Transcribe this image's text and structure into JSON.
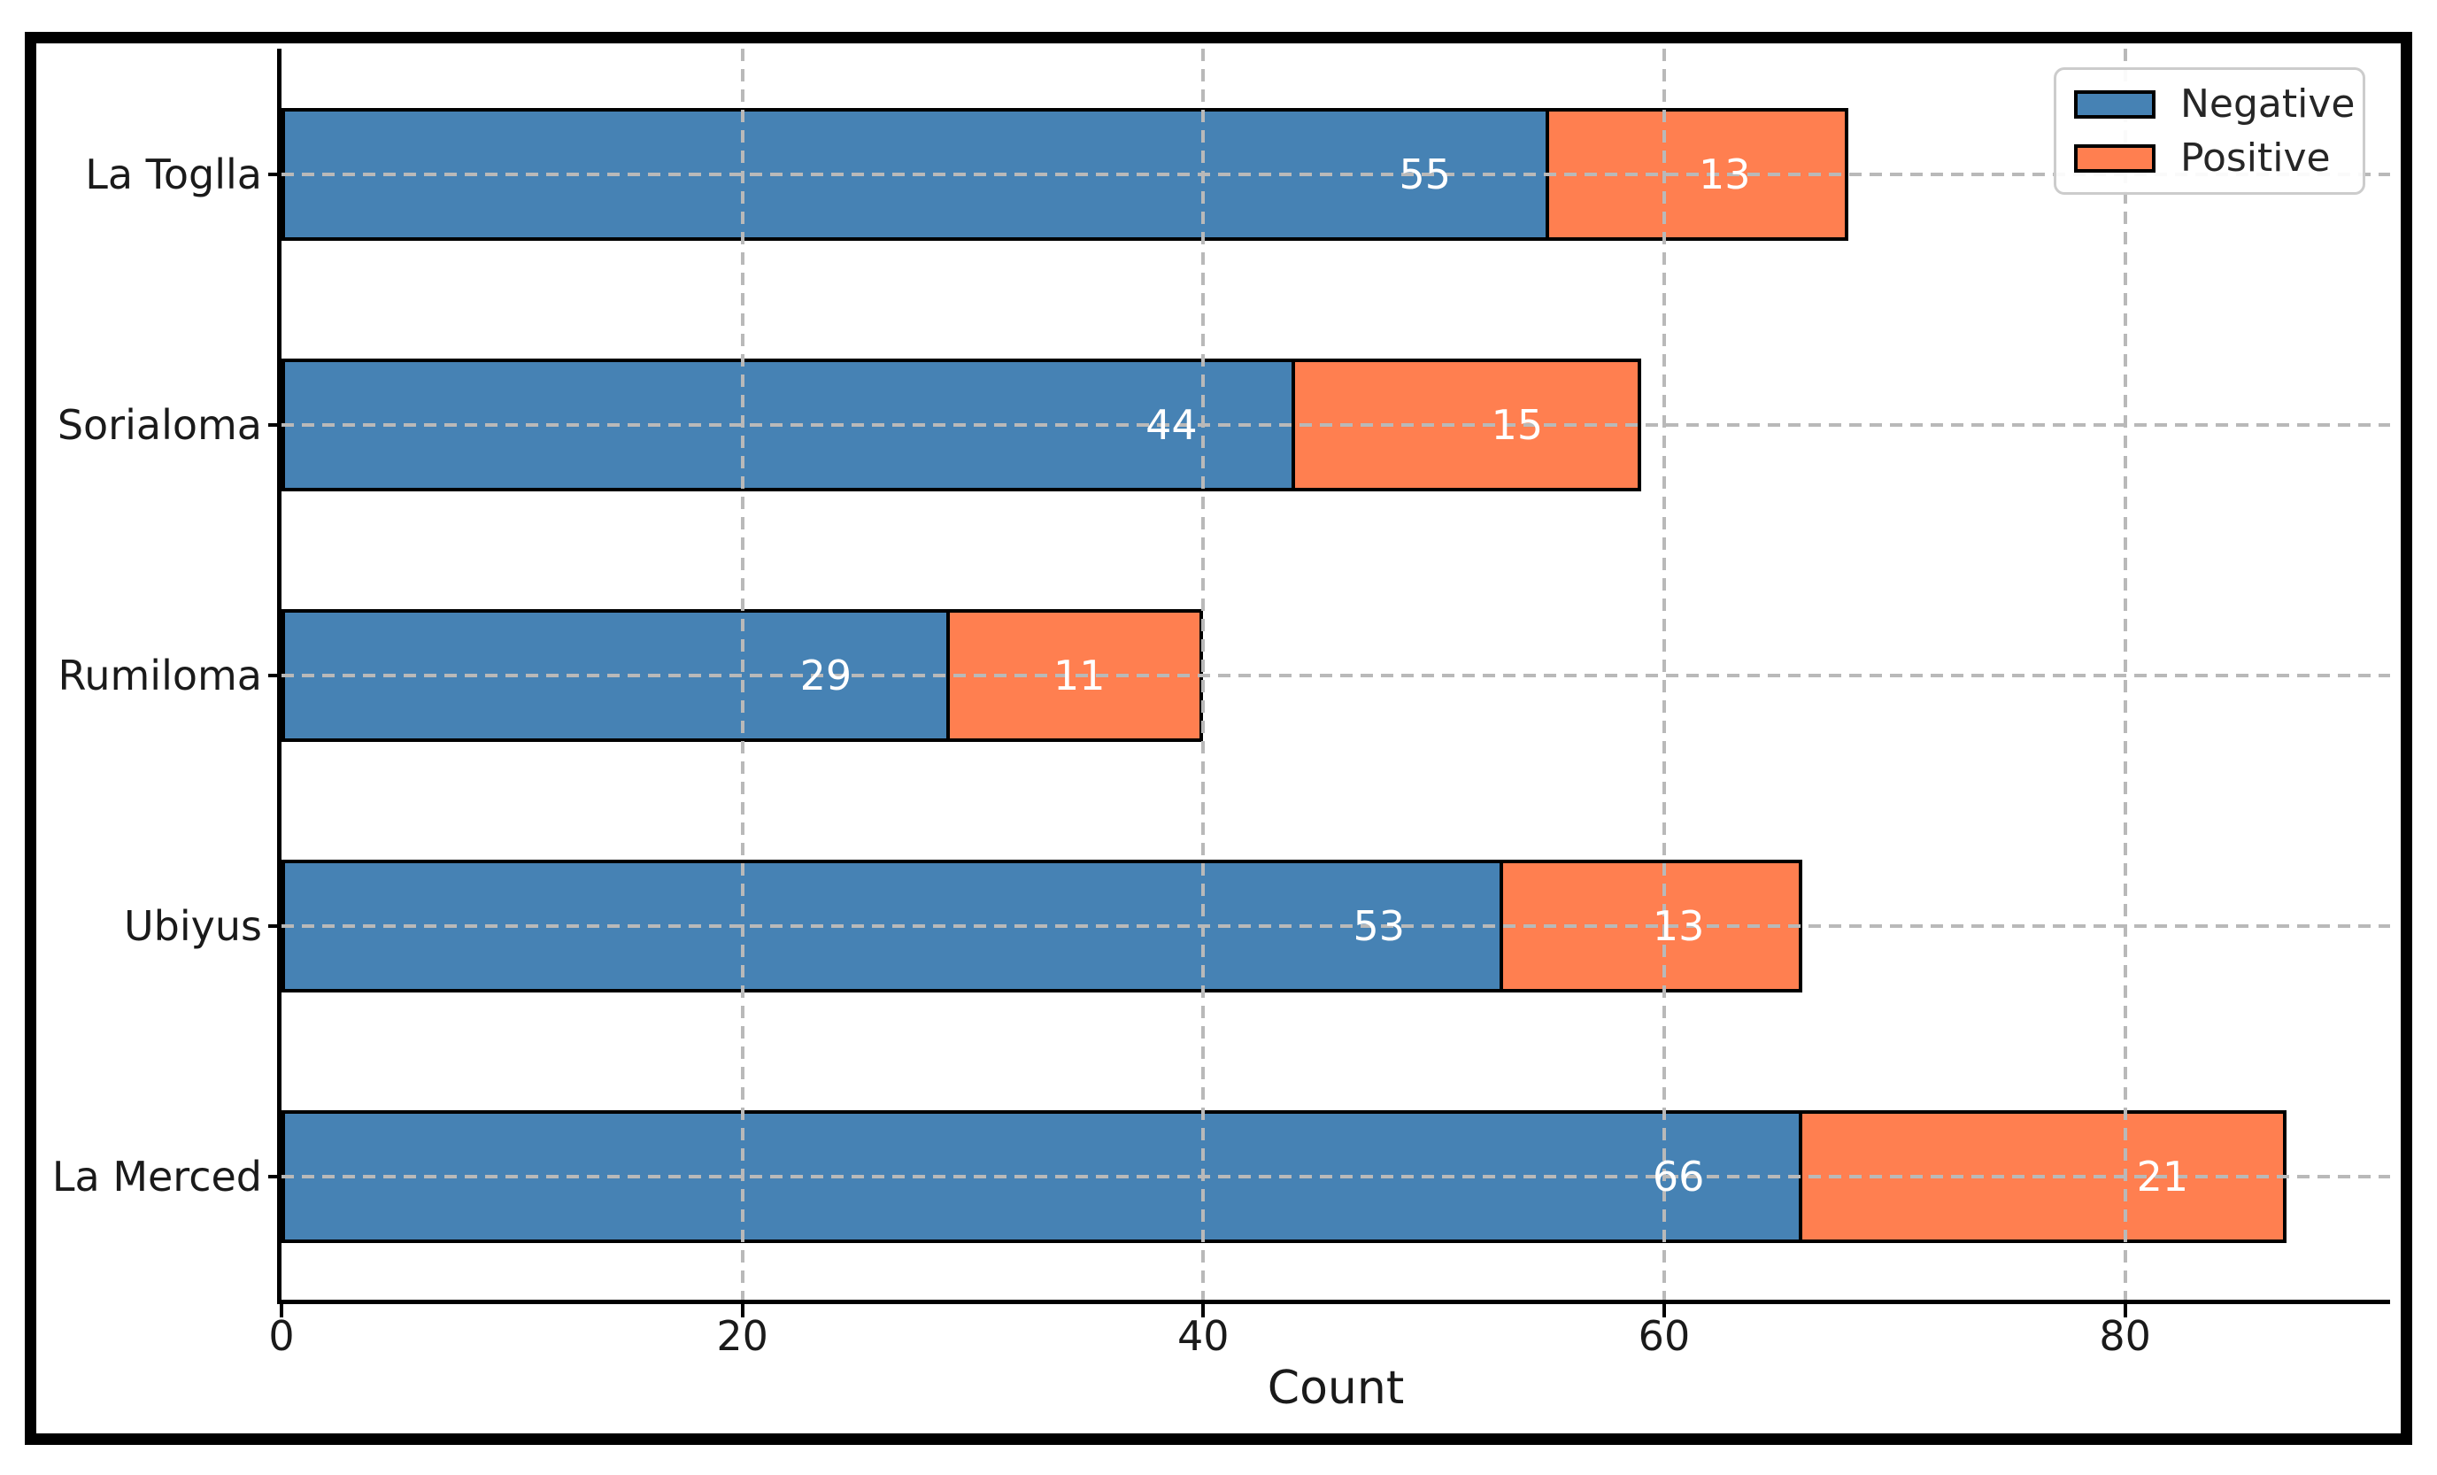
{
  "chart_data": {
    "type": "bar",
    "orientation": "horizontal",
    "stacked": true,
    "title": "",
    "categories": [
      "La Toglla",
      "Sorialoma",
      "Rumiloma",
      "Ubiyus",
      "La Merced"
    ],
    "series": [
      {
        "name": "Negative",
        "color": "#4682B4",
        "values": [
          55,
          44,
          29,
          53,
          66
        ]
      },
      {
        "name": "Positive",
        "color": "#FF7F50",
        "values": [
          13,
          15,
          11,
          13,
          21
        ]
      }
    ],
    "xlabel": "Count",
    "ylabel": "",
    "xticks": [
      0,
      20,
      40,
      60,
      80
    ],
    "xlim": [
      0,
      91.5
    ],
    "grid": "dashed",
    "grid_color": "#b9b9b9",
    "legend_position": "upper right",
    "bar_edge_color": "#000000",
    "value_label_color": "#ffffff",
    "axis_color": "#000000",
    "figure_border_color": "#000000",
    "background_color": "#ffffff"
  }
}
